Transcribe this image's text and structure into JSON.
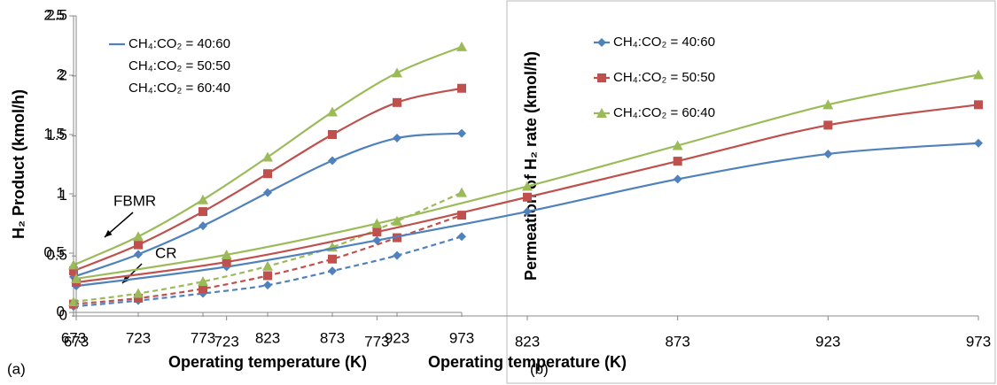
{
  "chart_data": [
    {
      "type": "line",
      "panel": "(a)",
      "x_label": "Operating temperature (K)",
      "y_label": "H₂ Product (kmol/h)",
      "annotations": [
        "FBMR",
        "CR"
      ],
      "x": [
        673,
        723,
        773,
        823,
        873,
        923,
        973
      ],
      "xlim": [
        673,
        973
      ],
      "xticks": [
        673,
        723,
        773,
        823,
        873,
        923,
        973
      ],
      "ylim": [
        0,
        2.5
      ],
      "yticks": [
        0,
        0.5,
        1,
        1.5,
        2,
        2.5
      ],
      "grid": false,
      "series": [
        {
          "name": "CH₄:CO₂ = 40:60",
          "color": "#4f81bd",
          "marker": "diamond",
          "values": [
            0.3,
            0.49,
            0.73,
            1.01,
            1.28,
            1.47,
            1.51
          ],
          "cr_values": [
            0.05,
            0.1,
            0.16,
            0.23,
            0.35,
            0.48,
            0.64
          ]
        },
        {
          "name": "CH₄:CO₂ = 50:50",
          "color": "#c0504d",
          "marker": "square",
          "values": [
            0.35,
            0.57,
            0.85,
            1.17,
            1.5,
            1.77,
            1.89
          ],
          "cr_values": [
            0.07,
            0.12,
            0.2,
            0.31,
            0.45,
            0.63,
            0.82
          ]
        },
        {
          "name": "CH₄:CO₂ = 60:40",
          "color": "#9bbb59",
          "marker": "triangle",
          "values": [
            0.4,
            0.64,
            0.95,
            1.31,
            1.69,
            2.02,
            2.24
          ],
          "cr_values": [
            0.09,
            0.16,
            0.26,
            0.39,
            0.55,
            0.77,
            1.01
          ]
        }
      ]
    },
    {
      "type": "line",
      "panel": "(b)",
      "x_label": "Operating temperature (K)",
      "y_label": "Permeation of H₂ rate (kmol/h)",
      "x": [
        673,
        723,
        773,
        823,
        873,
        923,
        973
      ],
      "xlim": [
        673,
        973
      ],
      "xticks": [
        673,
        723,
        773,
        823,
        873,
        923,
        973
      ],
      "ylim": [
        0,
        2.5
      ],
      "yticks": [
        0,
        0.5,
        1,
        1.5,
        2,
        2.5
      ],
      "grid": false,
      "series": [
        {
          "name": "CH₄:CO₂ = 40:60",
          "color": "#4f81bd",
          "marker": "diamond",
          "values": [
            0.25,
            0.41,
            0.63,
            0.87,
            1.14,
            1.35,
            1.44
          ]
        },
        {
          "name": "CH₄:CO₂ = 50:50",
          "color": "#c0504d",
          "marker": "square",
          "values": [
            0.28,
            0.45,
            0.7,
            0.99,
            1.29,
            1.59,
            1.76
          ]
        },
        {
          "name": "CH₄:CO₂ = 60:40",
          "color": "#9bbb59",
          "marker": "triangle",
          "values": [
            0.31,
            0.51,
            0.77,
            1.08,
            1.42,
            1.76,
            2.01
          ]
        }
      ]
    }
  ]
}
